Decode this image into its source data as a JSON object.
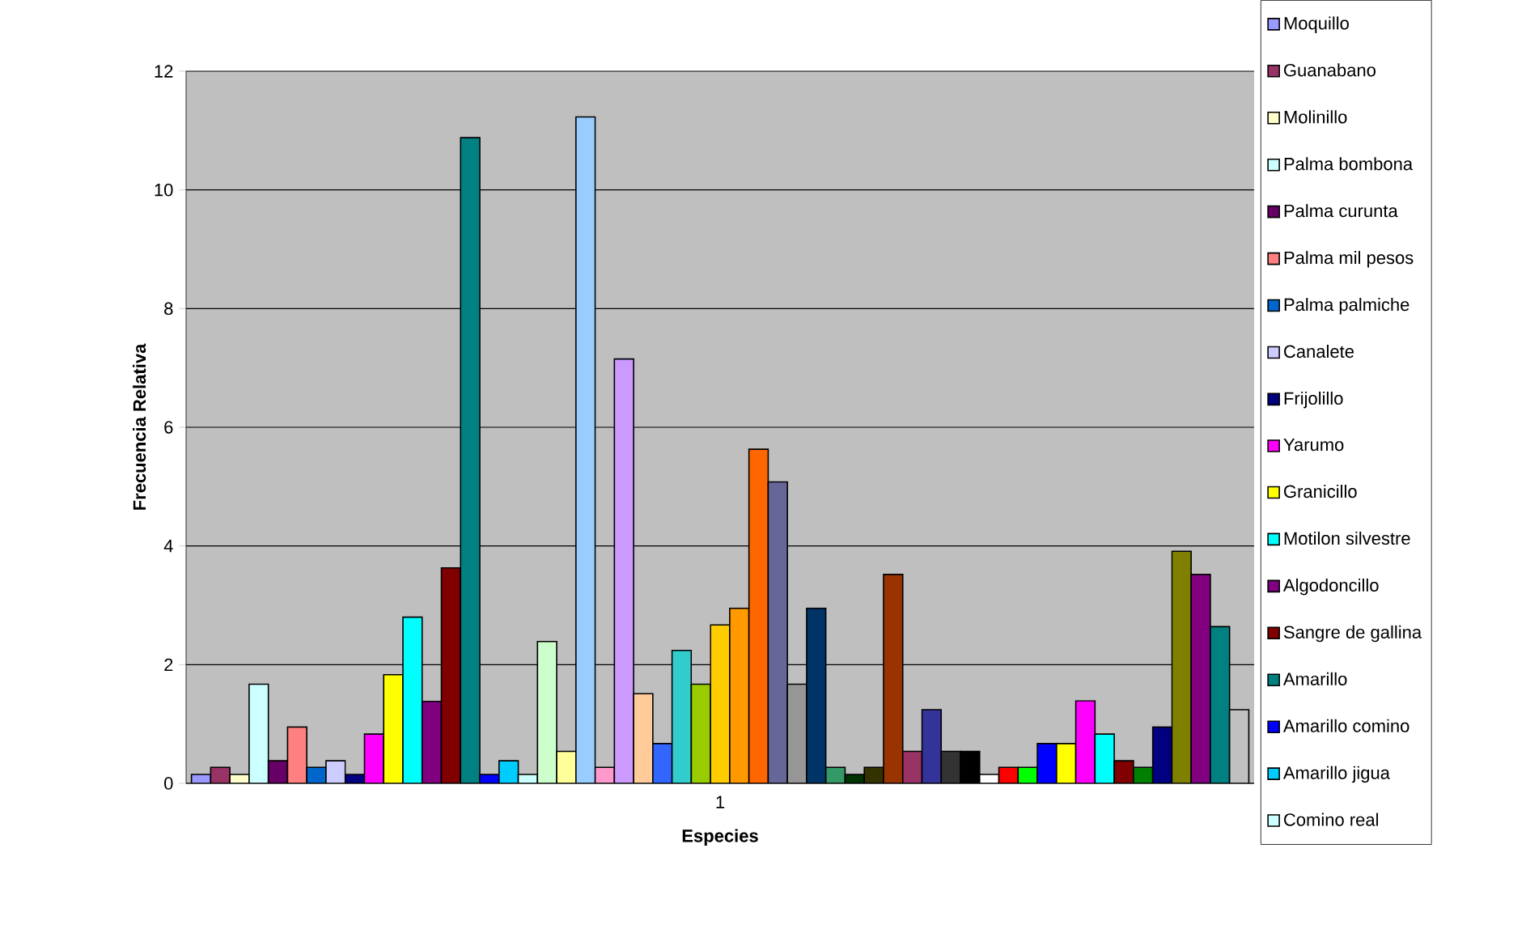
{
  "chart_data": {
    "type": "bar",
    "xlabel": "Especies",
    "ylabel": "Frecuencia Relativa",
    "categories": [
      "1"
    ],
    "ylim": [
      0,
      12
    ],
    "yticks": [
      0,
      2,
      4,
      6,
      8,
      10,
      12
    ],
    "grid": "y",
    "legend": "right",
    "series": [
      {
        "name": "Moquillo",
        "color": "#9999ff",
        "values": [
          0.15
        ]
      },
      {
        "name": "Guanabano",
        "color": "#993366",
        "values": [
          0.27
        ]
      },
      {
        "name": "Molinillo",
        "color": "#ffffcc",
        "values": [
          0.15
        ]
      },
      {
        "name": "Palma bombona",
        "color": "#ccffff",
        "values": [
          1.67
        ]
      },
      {
        "name": "Palma curunta",
        "color": "#660066",
        "values": [
          0.38
        ]
      },
      {
        "name": "Palma mil pesos",
        "color": "#ff8080",
        "values": [
          0.95
        ]
      },
      {
        "name": "Palma palmiche",
        "color": "#0066cc",
        "values": [
          0.27
        ]
      },
      {
        "name": "Canalete",
        "color": "#ccccff",
        "values": [
          0.38
        ]
      },
      {
        "name": "Frijolillo",
        "color": "#000080",
        "values": [
          0.15
        ]
      },
      {
        "name": "Yarumo",
        "color": "#ff00ff",
        "values": [
          0.83
        ]
      },
      {
        "name": "Granicillo",
        "color": "#ffff00",
        "values": [
          1.83
        ]
      },
      {
        "name": "Motilon silvestre",
        "color": "#00ffff",
        "values": [
          2.8
        ]
      },
      {
        "name": "Algodoncillo",
        "color": "#800080",
        "values": [
          1.38
        ]
      },
      {
        "name": "Sangre de gallina",
        "color": "#800000",
        "values": [
          3.63
        ]
      },
      {
        "name": "Amarillo",
        "color": "#008080",
        "values": [
          10.88
        ]
      },
      {
        "name": "Amarillo comino",
        "color": "#0000ff",
        "values": [
          0.15
        ]
      },
      {
        "name": "Amarillo jigua",
        "color": "#00ccff",
        "values": [
          0.38
        ]
      },
      {
        "name": "Comino real",
        "color": "#ccffff",
        "values": [
          0.15
        ]
      },
      {
        "color": "#ccffcc",
        "values": [
          2.39
        ]
      },
      {
        "color": "#ffff99",
        "values": [
          0.54
        ]
      },
      {
        "color": "#99ccff",
        "values": [
          11.23
        ]
      },
      {
        "color": "#ff99cc",
        "values": [
          0.27
        ]
      },
      {
        "color": "#cc99ff",
        "values": [
          7.15
        ]
      },
      {
        "color": "#ffcc99",
        "values": [
          1.51
        ]
      },
      {
        "color": "#3366ff",
        "values": [
          0.67
        ]
      },
      {
        "color": "#33cccc",
        "values": [
          2.24
        ]
      },
      {
        "color": "#99cc00",
        "values": [
          1.67
        ]
      },
      {
        "color": "#ffcc00",
        "values": [
          2.67
        ]
      },
      {
        "color": "#ff9900",
        "values": [
          2.95
        ]
      },
      {
        "color": "#ff6600",
        "values": [
          5.63
        ]
      },
      {
        "color": "#666699",
        "values": [
          5.08
        ]
      },
      {
        "color": "#969696",
        "values": [
          1.67
        ]
      },
      {
        "color": "#003366",
        "values": [
          2.95
        ]
      },
      {
        "color": "#339966",
        "values": [
          0.27
        ]
      },
      {
        "color": "#003300",
        "values": [
          0.15
        ]
      },
      {
        "color": "#333300",
        "values": [
          0.27
        ]
      },
      {
        "color": "#993300",
        "values": [
          3.52
        ]
      },
      {
        "color": "#993366",
        "values": [
          0.54
        ]
      },
      {
        "color": "#333399",
        "values": [
          1.24
        ]
      },
      {
        "color": "#333333",
        "values": [
          0.54
        ]
      },
      {
        "color": "#000000",
        "values": [
          0.54
        ]
      },
      {
        "color": "#ffffff",
        "values": [
          0.15
        ]
      },
      {
        "color": "#ff0000",
        "values": [
          0.27
        ]
      },
      {
        "color": "#00ff00",
        "values": [
          0.27
        ]
      },
      {
        "color": "#0000ff",
        "values": [
          0.67
        ]
      },
      {
        "color": "#ffff00",
        "values": [
          0.67
        ]
      },
      {
        "color": "#ff00ff",
        "values": [
          1.39
        ]
      },
      {
        "color": "#00ffff",
        "values": [
          0.83
        ]
      },
      {
        "color": "#800000",
        "values": [
          0.38
        ]
      },
      {
        "color": "#008000",
        "values": [
          0.27
        ]
      },
      {
        "color": "#000080",
        "values": [
          0.95
        ]
      },
      {
        "color": "#808000",
        "values": [
          3.91
        ]
      },
      {
        "color": "#800080",
        "values": [
          3.52
        ]
      },
      {
        "color": "#008080",
        "values": [
          2.64
        ]
      },
      {
        "color": "#c0c0c0",
        "values": [
          1.24
        ]
      }
    ]
  }
}
